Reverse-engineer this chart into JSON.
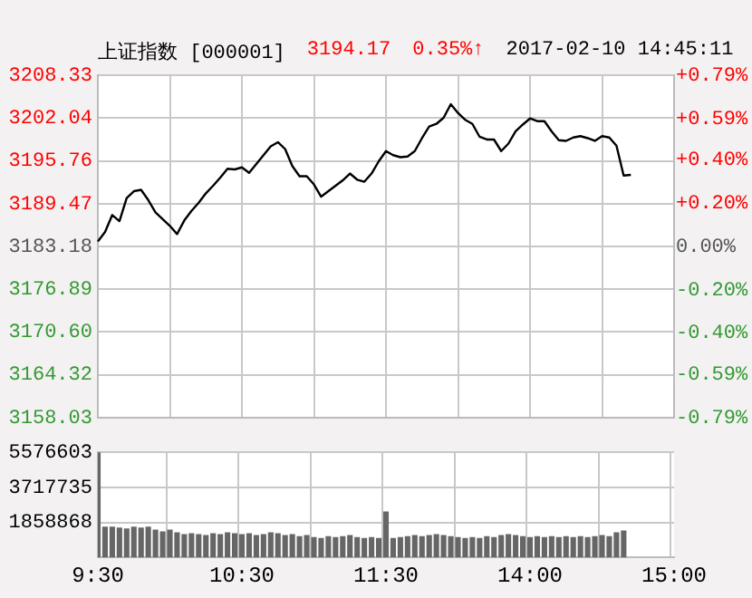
{
  "chart_data": [
    {
      "type": "line",
      "title": "上证指数 [000001]",
      "subtitle": "3194.17",
      "annotations": [
        "0.35%↑",
        "2017-02-10 14:45:11"
      ],
      "categories": [
        null,
        null,
        null,
        null,
        null,
        null,
        null,
        null,
        null,
        null,
        null,
        null,
        null,
        null,
        null,
        null,
        null,
        null,
        null,
        null,
        null,
        null,
        null,
        null,
        null,
        null,
        null,
        null,
        null,
        null,
        null,
        null,
        null,
        null,
        null,
        null,
        null,
        null,
        null,
        null,
        null,
        null,
        null,
        null,
        null,
        null,
        null,
        null,
        null,
        null,
        null,
        null,
        null,
        null,
        null,
        null,
        null,
        null,
        null,
        null,
        null,
        null,
        null,
        null,
        null,
        null,
        null,
        null,
        null,
        null,
        null,
        null,
        null,
        null,
        null,
        null,
        null,
        null,
        null,
        null,
        null
      ],
      "series": [
        {
          "color": "#000000",
          "values": [
            3183.9,
            3185.3,
            3187.8,
            3186.9,
            3190.3,
            3191.3,
            3191.5,
            3190.0,
            3188.2,
            3187.2,
            3186.2,
            3185.0,
            3187.0,
            3188.4,
            3189.6,
            3191.0,
            3192.1,
            3193.3,
            3194.6,
            3194.5,
            3194.8,
            3194.0,
            3195.3,
            3196.6,
            3197.9,
            3198.5,
            3197.5,
            3195.0,
            3193.5,
            3193.5,
            3192.3,
            3190.5,
            3191.3,
            3192.1,
            3192.9,
            3193.9,
            3193.0,
            3192.7,
            3193.9,
            3195.7,
            3197.2,
            3196.6,
            3196.3,
            3196.4,
            3197.2,
            3199.1,
            3200.8,
            3201.2,
            3202.1,
            3204.1,
            3202.8,
            3201.8,
            3201.2,
            3199.3,
            3198.9,
            3198.9,
            3197.2,
            3198.3,
            3200.1,
            3201.1,
            3202.0,
            3201.6,
            3201.6,
            3200.1,
            3198.8,
            3198.7,
            3199.2,
            3199.4,
            3199.1,
            3198.7,
            3199.4,
            3199.2,
            3198.0,
            3193.6,
            3193.7,
            null,
            null,
            null,
            null,
            null,
            null
          ]
        }
      ],
      "ylim": [
        3158.03,
        3208.33
      ],
      "yticks": [
        3158.03,
        3164.32,
        {
          "value": 3170.6,
          "label": "3170.60"
        },
        3176.89,
        3183.18,
        3189.47,
        3195.76,
        3202.04,
        3208.33
      ],
      "y2lim": [
        -0.79,
        0.79
      ],
      "y2ticks": [
        {
          "value": -0.79,
          "label": "-0.79%"
        },
        {
          "value": -0.59,
          "label": "-0.59%"
        },
        {
          "value": -0.4,
          "label": "-0.40%"
        },
        {
          "value": -0.2,
          "label": "-0.20%"
        },
        {
          "value": 0,
          "label": "0.00%"
        },
        {
          "value": 0.2,
          "label": "+0.20%"
        },
        {
          "value": 0.4,
          "label": "+0.40%"
        },
        {
          "value": 0.59,
          "label": "+0.59%"
        },
        {
          "value": 0.79,
          "label": "+0.79%"
        }
      ],
      "grid": true,
      "tick_labels": "y",
      "marker": "none"
    },
    {
      "type": "bar",
      "categories": [
        "9:30",
        null,
        null,
        null,
        null,
        null,
        null,
        null,
        null,
        null,
        null,
        null,
        null,
        null,
        null,
        null,
        null,
        null,
        null,
        null,
        "10:30",
        null,
        null,
        null,
        null,
        null,
        null,
        null,
        null,
        null,
        null,
        null,
        null,
        null,
        null,
        null,
        null,
        null,
        null,
        null,
        "11:30",
        null,
        null,
        null,
        null,
        null,
        null,
        null,
        null,
        null,
        null,
        null,
        null,
        null,
        null,
        null,
        null,
        null,
        null,
        null,
        "14:00",
        null,
        null,
        null,
        null,
        null,
        null,
        null,
        null,
        null,
        null,
        null,
        null,
        null,
        null,
        null,
        null,
        null,
        null,
        null,
        "15:00"
      ],
      "values": [
        5576603,
        1600000,
        1600000,
        1550000,
        1500000,
        1600000,
        1550000,
        1600000,
        1450000,
        1350000,
        1450000,
        1300000,
        1200000,
        1250000,
        1200000,
        1150000,
        1250000,
        1200000,
        1300000,
        1250000,
        1200000,
        1250000,
        1150000,
        1200000,
        1300000,
        1250000,
        1150000,
        1200000,
        1100000,
        1150000,
        1050000,
        1000000,
        1100000,
        1050000,
        1100000,
        1150000,
        1050000,
        1000000,
        1050000,
        1000000,
        2400000,
        1000000,
        1050000,
        1100000,
        1150000,
        1100000,
        1150000,
        1200000,
        1150000,
        1100000,
        1050000,
        1000000,
        1050000,
        1000000,
        1100000,
        1050000,
        1150000,
        1200000,
        1150000,
        1100000,
        1050000,
        1100000,
        1050000,
        1100000,
        1050000,
        1100000,
        1050000,
        1100000,
        1050000,
        1100000,
        1150000,
        1100000,
        1300000,
        1400000,
        null,
        null,
        null,
        null,
        null,
        null,
        null
      ],
      "color": "#666666",
      "ylim": [
        0,
        5576603
      ],
      "yticks": [
        1858868,
        3717735,
        5576603
      ],
      "grid": true
    }
  ]
}
